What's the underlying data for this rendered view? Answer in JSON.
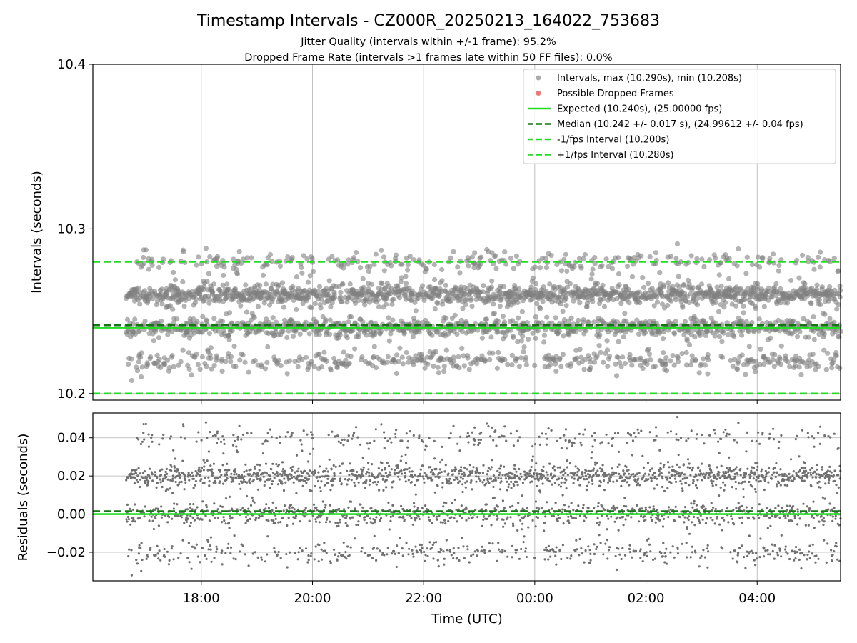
{
  "figure": {
    "title": "Timestamp Intervals - CZ000R_20250213_164022_753683",
    "subtitle1": "Jitter Quality (intervals within +/-1 frame): 95.2%",
    "subtitle2": "Dropped Frame Rate (intervals >1 frames late within 50 FF files): 0.0%"
  },
  "chart_data": [
    {
      "type": "scatter",
      "ylabel": "Intervals (seconds)",
      "xlabel": "",
      "x_range_hours": [
        16.05,
        29.5
      ],
      "x_start_time": "16:03",
      "x_end_time": "05:30",
      "ylim": [
        10.196,
        10.4
      ],
      "yticks": [
        10.2,
        10.3,
        10.4
      ],
      "ytick_labels": [
        "10.2",
        "10.3",
        "10.4"
      ],
      "xtick_labels": [
        "18:00",
        "20:00",
        "22:00",
        "00:00",
        "02:00",
        "04:00"
      ],
      "xtick_hours": [
        18,
        20,
        22,
        24,
        26,
        28
      ],
      "grid": true,
      "legend_position": "upper-right",
      "data_start_hour": 16.65,
      "data_end_hour": 29.5,
      "interval_bands": [
        {
          "value": 10.26,
          "weight": 0.45
        },
        {
          "value": 10.24,
          "weight": 0.3
        },
        {
          "value": 10.28,
          "weight": 0.1
        },
        {
          "value": 10.22,
          "weight": 0.15
        }
      ],
      "band_spread": 0.003,
      "num_points": 3000,
      "series": [
        {
          "name": "Intervals, max (10.290s), min (10.208s)",
          "color": "#808080",
          "marker": "circle"
        },
        {
          "name": "Possible Dropped Frames",
          "color": "#f07070",
          "marker": "circle"
        },
        {
          "name": "Expected (10.240s), (25.00000 fps)",
          "color": "#22dd22",
          "line": "solid",
          "value": 10.24
        },
        {
          "name": "Median (10.242 +/- 0.017 s), (24.99612 +/- 0.04 fps)",
          "color": "#117711",
          "line": "dashed",
          "value": 10.2415
        },
        {
          "name": "-1/fps Interval (10.200s)",
          "color": "#22dd22",
          "line": "dashed",
          "value": 10.2
        },
        {
          "name": "+1/fps Interval (10.280s)",
          "color": "#22dd22",
          "line": "dashed",
          "value": 10.28
        }
      ]
    },
    {
      "type": "scatter",
      "ylabel": "Residuals (seconds)",
      "xlabel": "Time (UTC)",
      "x_range_hours": [
        16.05,
        29.5
      ],
      "ylim": [
        -0.035,
        0.053
      ],
      "yticks": [
        -0.02,
        0.0,
        0.02,
        0.04
      ],
      "ytick_labels": [
        "−0.02",
        "0.00",
        "0.02",
        "0.04"
      ],
      "xtick_labels": [
        "18:00",
        "20:00",
        "22:00",
        "00:00",
        "02:00",
        "04:00"
      ],
      "xtick_hours": [
        18,
        20,
        22,
        24,
        26,
        28
      ],
      "grid": true,
      "residual_bands": [
        {
          "value": 0.02,
          "weight": 0.45
        },
        {
          "value": 0.0,
          "weight": 0.3
        },
        {
          "value": 0.04,
          "weight": 0.1
        },
        {
          "value": -0.02,
          "weight": 0.15
        }
      ],
      "band_spread": 0.003,
      "lines": [
        {
          "color": "#22dd22",
          "line": "solid",
          "value": 0.0
        },
        {
          "color": "#117711",
          "line": "dashed",
          "value": 0.0015
        }
      ]
    }
  ]
}
